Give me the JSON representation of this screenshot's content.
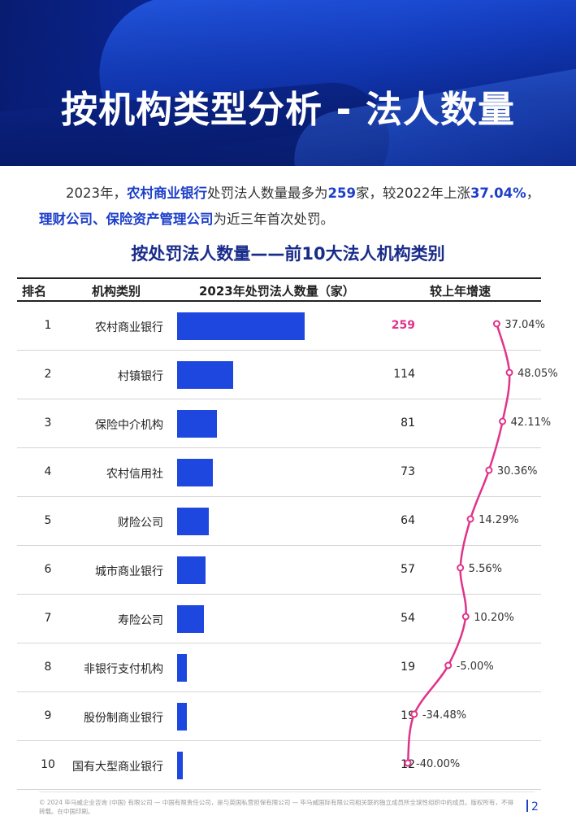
{
  "header": {
    "title": "按机构类型分析 - 法人数量"
  },
  "summary": {
    "seg1": "2023年，",
    "seg2": "农村商业银行",
    "seg3": "处罚法人数量最多为",
    "seg4": "259",
    "seg5": "家，较2022年上涨",
    "seg6": "37.04%",
    "seg7": "，",
    "seg8": "理财公司、保险资产管理公司",
    "seg9": "为近三年首次处罚。"
  },
  "chart_data": {
    "type": "table",
    "title": "按处罚法人数量——前10大法人机构类别",
    "columns": [
      "排名",
      "机构类别",
      "2023年处罚法人数量（家）",
      "较上年增速"
    ],
    "rows": [
      {
        "rank": "1",
        "category": "农村商业银行",
        "count": 259,
        "count_label": "259",
        "growth": 37.04,
        "growth_label": "37.04%"
      },
      {
        "rank": "2",
        "category": "村镇银行",
        "count": 114,
        "count_label": "114",
        "growth": 48.05,
        "growth_label": "48.05%"
      },
      {
        "rank": "3",
        "category": "保险中介机构",
        "count": 81,
        "count_label": "81",
        "growth": 42.11,
        "growth_label": "42.11%"
      },
      {
        "rank": "4",
        "category": "农村信用社",
        "count": 73,
        "count_label": "73",
        "growth": 30.36,
        "growth_label": "30.36%"
      },
      {
        "rank": "5",
        "category": "财险公司",
        "count": 64,
        "count_label": "64",
        "growth": 14.29,
        "growth_label": "14.29%"
      },
      {
        "rank": "6",
        "category": "城市商业银行",
        "count": 57,
        "count_label": "57",
        "growth": 5.56,
        "growth_label": "5.56%"
      },
      {
        "rank": "7",
        "category": "寿险公司",
        "count": 54,
        "count_label": "54",
        "growth": 10.2,
        "growth_label": "10.20%"
      },
      {
        "rank": "8",
        "category": "非银行支付机构",
        "count": 19,
        "count_label": "19",
        "growth": -5.0,
        "growth_label": "-5.00%"
      },
      {
        "rank": "9",
        "category": "股份制商业银行",
        "count": 19,
        "count_label": "19",
        "growth": -34.48,
        "growth_label": "-34.48%"
      },
      {
        "rank": "10",
        "category": "国有大型商业银行",
        "count": 12,
        "count_label": "12",
        "growth": -40.0,
        "growth_label": "-40.00%"
      }
    ],
    "bar_color": "#1e47e0",
    "line_color": "#e0338a",
    "highlight_color": "#e0338a"
  },
  "footer": {
    "copyright": "© 2024 毕马威企业咨询 (中国) 有限公司 — 中国有限责任公司，是与英国私营担保有限公司 — 毕马威国际有限公司相关联的独立成员所全球性组织中的成员。版权所有，不得转载。在中国印刷。",
    "page_number": "2"
  }
}
